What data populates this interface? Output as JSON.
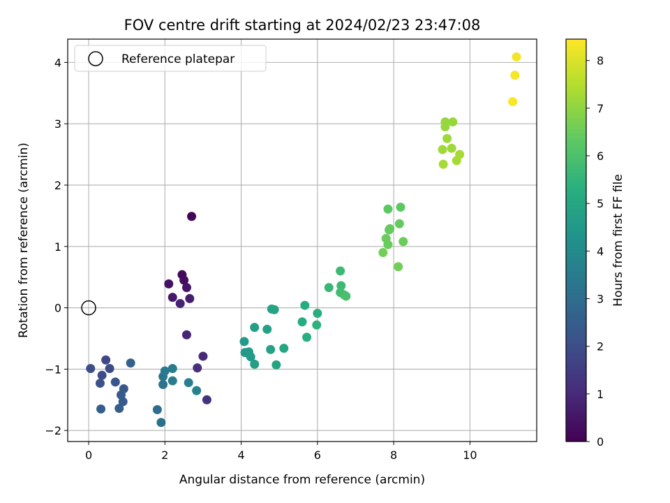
{
  "chart_data": {
    "type": "scatter",
    "title": "FOV centre drift starting at 2024/02/23 23:47:08",
    "xlabel": "Angular distance from reference (arcmin)",
    "ylabel": "Rotation from reference (arcmin)",
    "xlim": [
      -0.55,
      11.75
    ],
    "ylim": [
      -2.18,
      4.38
    ],
    "xticks": [
      "0",
      "2",
      "4",
      "6",
      "8",
      "10"
    ],
    "yticks": [
      "−2",
      "−1",
      "0",
      "1",
      "2",
      "3",
      "4"
    ],
    "grid": true,
    "legend": {
      "placement": "top-left",
      "entries": [
        "Reference platepar"
      ]
    },
    "reference": {
      "x": 0,
      "y": 0
    },
    "colorbar": {
      "label": "Hours from first FF file",
      "colormap": "viridis",
      "range": [
        0,
        8.45
      ],
      "ticks": [
        "0",
        "1",
        "2",
        "3",
        "4",
        "5",
        "6",
        "7",
        "8"
      ]
    },
    "points": [
      {
        "x": 2.7,
        "y": 1.49,
        "t": 0.1
      },
      {
        "x": 2.45,
        "y": 0.54,
        "t": 0.2
      },
      {
        "x": 2.5,
        "y": 0.45,
        "t": 0.3
      },
      {
        "x": 2.1,
        "y": 0.39,
        "t": 0.4
      },
      {
        "x": 2.57,
        "y": 0.33,
        "t": 0.5
      },
      {
        "x": 2.2,
        "y": 0.17,
        "t": 0.6
      },
      {
        "x": 2.65,
        "y": 0.15,
        "t": 0.7
      },
      {
        "x": 2.4,
        "y": 0.07,
        "t": 0.8
      },
      {
        "x": 2.57,
        "y": -0.44,
        "t": 0.9
      },
      {
        "x": 3.0,
        "y": -0.79,
        "t": 1.0
      },
      {
        "x": 2.85,
        "y": -0.98,
        "t": 1.1
      },
      {
        "x": 3.1,
        "y": -1.5,
        "t": 1.2
      },
      {
        "x": 0.45,
        "y": -0.85,
        "t": 1.8
      },
      {
        "x": 0.55,
        "y": -0.99,
        "t": 1.9
      },
      {
        "x": 0.05,
        "y": -0.99,
        "t": 2.0
      },
      {
        "x": 0.35,
        "y": -1.1,
        "t": 2.0
      },
      {
        "x": 0.3,
        "y": -1.23,
        "t": 2.1
      },
      {
        "x": 0.7,
        "y": -1.21,
        "t": 2.2
      },
      {
        "x": 0.92,
        "y": -1.32,
        "t": 2.3
      },
      {
        "x": 0.85,
        "y": -1.42,
        "t": 2.4
      },
      {
        "x": 0.9,
        "y": -1.53,
        "t": 2.4
      },
      {
        "x": 0.8,
        "y": -1.64,
        "t": 2.5
      },
      {
        "x": 0.32,
        "y": -1.65,
        "t": 2.5
      },
      {
        "x": 1.1,
        "y": -0.9,
        "t": 2.6
      },
      {
        "x": 1.8,
        "y": -1.66,
        "t": 3.0
      },
      {
        "x": 1.9,
        "y": -1.87,
        "t": 3.1
      },
      {
        "x": 1.95,
        "y": -1.25,
        "t": 3.2
      },
      {
        "x": 1.95,
        "y": -1.12,
        "t": 3.3
      },
      {
        "x": 2.0,
        "y": -1.03,
        "t": 3.4
      },
      {
        "x": 2.2,
        "y": -0.99,
        "t": 3.5
      },
      {
        "x": 2.2,
        "y": -1.19,
        "t": 3.5
      },
      {
        "x": 2.62,
        "y": -1.22,
        "t": 3.6
      },
      {
        "x": 2.83,
        "y": -1.35,
        "t": 3.7
      },
      {
        "x": 4.08,
        "y": -0.55,
        "t": 4.5
      },
      {
        "x": 4.1,
        "y": -0.73,
        "t": 4.5
      },
      {
        "x": 4.2,
        "y": -0.72,
        "t": 4.6
      },
      {
        "x": 4.25,
        "y": -0.8,
        "t": 4.6
      },
      {
        "x": 4.35,
        "y": -0.92,
        "t": 4.7
      },
      {
        "x": 4.35,
        "y": -0.32,
        "t": 4.7
      },
      {
        "x": 4.68,
        "y": -0.35,
        "t": 4.8
      },
      {
        "x": 4.77,
        "y": -0.68,
        "t": 4.8
      },
      {
        "x": 4.8,
        "y": -0.02,
        "t": 4.9
      },
      {
        "x": 4.87,
        "y": -0.03,
        "t": 4.9
      },
      {
        "x": 4.92,
        "y": -0.93,
        "t": 4.9
      },
      {
        "x": 5.12,
        "y": -0.66,
        "t": 5.0
      },
      {
        "x": 5.6,
        "y": -0.23,
        "t": 5.2
      },
      {
        "x": 5.67,
        "y": 0.04,
        "t": 5.2
      },
      {
        "x": 5.72,
        "y": -0.48,
        "t": 5.3
      },
      {
        "x": 6.0,
        "y": -0.09,
        "t": 5.3
      },
      {
        "x": 5.98,
        "y": -0.28,
        "t": 5.4
      },
      {
        "x": 6.3,
        "y": 0.33,
        "t": 5.6
      },
      {
        "x": 6.6,
        "y": 0.6,
        "t": 5.7
      },
      {
        "x": 6.62,
        "y": 0.36,
        "t": 5.7
      },
      {
        "x": 6.6,
        "y": 0.25,
        "t": 5.8
      },
      {
        "x": 6.7,
        "y": 0.21,
        "t": 5.8
      },
      {
        "x": 6.75,
        "y": 0.19,
        "t": 5.9
      },
      {
        "x": 7.85,
        "y": 1.61,
        "t": 6.3
      },
      {
        "x": 8.18,
        "y": 1.64,
        "t": 6.3
      },
      {
        "x": 7.9,
        "y": 1.29,
        "t": 6.4
      },
      {
        "x": 7.88,
        "y": 1.27,
        "t": 6.4
      },
      {
        "x": 8.15,
        "y": 1.37,
        "t": 6.4
      },
      {
        "x": 7.8,
        "y": 1.13,
        "t": 6.5
      },
      {
        "x": 8.25,
        "y": 1.08,
        "t": 6.5
      },
      {
        "x": 7.85,
        "y": 1.03,
        "t": 6.5
      },
      {
        "x": 7.72,
        "y": 0.9,
        "t": 6.6
      },
      {
        "x": 8.12,
        "y": 0.67,
        "t": 6.6
      },
      {
        "x": 9.35,
        "y": 3.03,
        "t": 7.1
      },
      {
        "x": 9.55,
        "y": 3.03,
        "t": 7.1
      },
      {
        "x": 9.35,
        "y": 2.95,
        "t": 7.1
      },
      {
        "x": 9.4,
        "y": 2.76,
        "t": 7.2
      },
      {
        "x": 9.28,
        "y": 2.58,
        "t": 7.2
      },
      {
        "x": 9.52,
        "y": 2.6,
        "t": 7.2
      },
      {
        "x": 9.73,
        "y": 2.5,
        "t": 7.3
      },
      {
        "x": 9.65,
        "y": 2.4,
        "t": 7.3
      },
      {
        "x": 9.3,
        "y": 2.34,
        "t": 7.3
      },
      {
        "x": 11.22,
        "y": 4.09,
        "t": 8.3
      },
      {
        "x": 11.18,
        "y": 3.79,
        "t": 8.35
      },
      {
        "x": 11.12,
        "y": 3.36,
        "t": 8.4
      }
    ]
  }
}
